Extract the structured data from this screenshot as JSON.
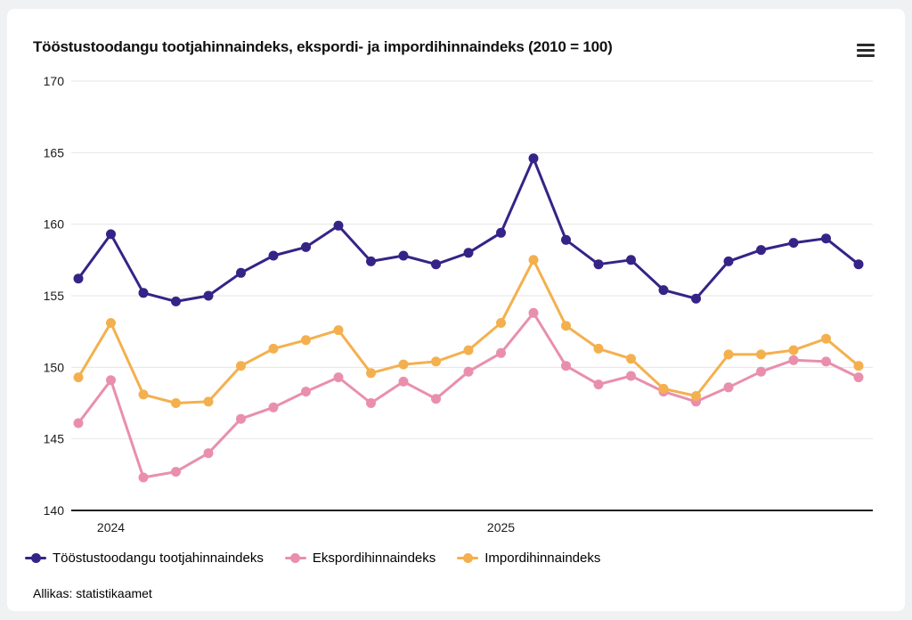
{
  "header": {
    "menu_icon": "hamburger-menu-icon"
  },
  "footer": {
    "source": "Allikas: statistikaamet"
  },
  "chart_data": {
    "type": "line",
    "title": "Tööstustoodangu tootjahinnaindeks, ekspordi- ja impordihinnaindeks (2010 = 100)",
    "xlabel": "",
    "ylabel": "",
    "ylim": [
      140,
      170
    ],
    "yticks": [
      140,
      145,
      150,
      155,
      160,
      165,
      170
    ],
    "grid": true,
    "legend_position": "bottom",
    "x": [
      "2023-12",
      "2024-01",
      "2024-02",
      "2024-03",
      "2024-04",
      "2024-05",
      "2024-06",
      "2024-07",
      "2024-08",
      "2024-09",
      "2024-10",
      "2024-11",
      "2024-12",
      "2025-01",
      "2025-02",
      "2025-03",
      "2025-04",
      "2025-05",
      "2025-06",
      "2025-07",
      "2025-08",
      "2025-09",
      "2025-10",
      "2025-11",
      "2025-12"
    ],
    "xticks": [
      {
        "label": "2024",
        "index": 1
      },
      {
        "label": "2025",
        "index": 13
      }
    ],
    "series": [
      {
        "name": "Tööstustoodangu tootjahinnaindeks",
        "color": "#362387",
        "values": [
          156.2,
          159.3,
          155.2,
          154.6,
          155.0,
          156.6,
          157.8,
          158.4,
          159.9,
          157.4,
          157.8,
          157.2,
          158.0,
          159.4,
          164.6,
          158.9,
          157.2,
          157.5,
          155.4,
          154.8,
          157.4,
          158.2,
          158.7,
          159.0,
          157.2
        ]
      },
      {
        "name": "Ekspordihinnaindeks",
        "color": "#e98fad",
        "values": [
          146.1,
          149.1,
          142.3,
          142.7,
          144.0,
          146.4,
          147.2,
          148.3,
          149.3,
          147.5,
          149.0,
          147.8,
          149.7,
          151.0,
          153.8,
          150.1,
          148.8,
          149.4,
          148.3,
          147.6,
          148.6,
          149.7,
          150.5,
          150.4,
          149.3
        ]
      },
      {
        "name": "Impordihinnaindeks",
        "color": "#f4b04e",
        "values": [
          149.3,
          153.1,
          148.1,
          147.5,
          147.6,
          150.1,
          151.3,
          151.9,
          152.6,
          149.6,
          150.2,
          150.4,
          151.2,
          153.1,
          157.5,
          152.9,
          151.3,
          150.6,
          148.5,
          148.0,
          150.9,
          150.9,
          151.2,
          152.0,
          150.1
        ]
      }
    ],
    "style": {
      "grid_color": "#e6e6e6",
      "axis_color": "#000000",
      "background": "#ffffff",
      "page_background": "#f0f1f2"
    }
  }
}
